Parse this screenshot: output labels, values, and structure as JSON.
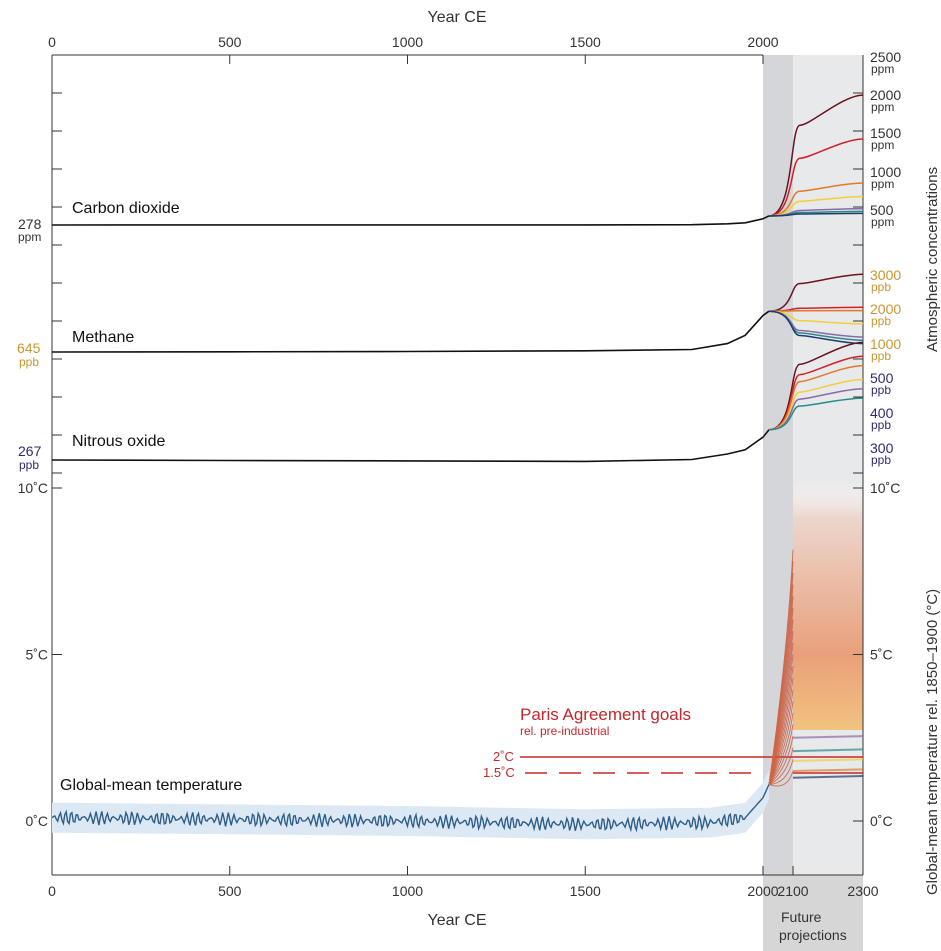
{
  "chart_data": {
    "type": "line",
    "x_axis": {
      "label_top": "Year CE",
      "label_bottom": "Year CE",
      "ticks_top": [
        "0",
        "500",
        "1000",
        "1500",
        "2000"
      ],
      "ticks_top_values": [
        0,
        500,
        1000,
        1500,
        2000
      ],
      "ticks_bottom": [
        "0",
        "500",
        "1000",
        "1500",
        "2000",
        "2100",
        "2300"
      ],
      "ticks_bottom_values": [
        0,
        500,
        1000,
        1500,
        2000,
        2100,
        2300
      ],
      "future_label_line1": "Future",
      "future_label_line2": "projections"
    },
    "right_axis_labels": {
      "concentrations": "Atmospheric concentrations",
      "temperature": "Global-mean temperature rel. 1850–1900 (°C)"
    },
    "temperature_ticks": [
      "10˚C",
      "5˚C",
      "0˚C"
    ],
    "temperature_tick_values": [
      10,
      5,
      0
    ],
    "concentration_ticks": {
      "co2": [
        {
          "value": "2500",
          "unit": "ppm"
        },
        {
          "value": "2000",
          "unit": "ppm"
        },
        {
          "value": "1500",
          "unit": "ppm"
        },
        {
          "value": "1000",
          "unit": "ppm"
        },
        {
          "value": "500",
          "unit": "ppm"
        }
      ],
      "ch4": [
        {
          "value": "3000",
          "unit": "ppb"
        },
        {
          "value": "2000",
          "unit": "ppb"
        },
        {
          "value": "1000",
          "unit": "ppb"
        }
      ],
      "n2o": [
        {
          "value": "500",
          "unit": "ppb"
        },
        {
          "value": "400",
          "unit": "ppb"
        },
        {
          "value": "300",
          "unit": "ppb"
        }
      ]
    },
    "baselines": {
      "co2": {
        "value": "278",
        "unit": "ppm"
      },
      "ch4": {
        "value": "645",
        "unit": "ppb"
      },
      "n2o": {
        "value": "267",
        "unit": "ppb"
      }
    },
    "series_labels": {
      "co2": "Carbon dioxide",
      "ch4": "Methane",
      "n2o": "Nitrous oxide",
      "temp": "Global-mean temperature"
    },
    "paris": {
      "title": "Paris Agreement goals",
      "subtitle": "rel. pre-industrial",
      "goal_2": "2˚C",
      "goal_15": "1.5˚C",
      "goal_2_value": 2.0,
      "goal_15_value": 1.5
    },
    "series": [
      {
        "name": "Carbon dioxide",
        "unit": "ppm",
        "x": [
          0,
          500,
          1000,
          1500,
          1800,
          1900,
          1950,
          2000,
          2020
        ],
        "y": [
          278,
          279,
          280,
          279,
          283,
          296,
          311,
          369,
          412
        ]
      },
      {
        "name": "Methane",
        "unit": "ppb",
        "x": [
          0,
          500,
          1000,
          1500,
          1800,
          1900,
          1950,
          2000,
          2020
        ],
        "y": [
          645,
          650,
          660,
          680,
          720,
          900,
          1150,
          1750,
          1880
        ]
      },
      {
        "name": "Nitrous oxide",
        "unit": "ppb",
        "x": [
          0,
          500,
          1000,
          1500,
          1800,
          1900,
          1950,
          2000,
          2020
        ],
        "y": [
          267,
          266,
          265,
          264,
          268,
          280,
          289,
          316,
          332
        ]
      },
      {
        "name": "Global-mean temperature",
        "unit": "°C",
        "x": [
          0,
          500,
          1000,
          1500,
          1850,
          1950,
          2000,
          2020
        ],
        "y": [
          0.1,
          0.05,
          0.0,
          -0.1,
          -0.05,
          0.1,
          0.7,
          1.1
        ]
      }
    ],
    "projections_2300": {
      "co2": [
        2200,
        1550,
        900,
        700,
        520,
        480,
        450
      ],
      "ch4": [
        3000,
        2000,
        1900,
        1500,
        1100,
        1000,
        900
      ],
      "n2o": [
        520,
        490,
        470,
        440,
        420,
        400
      ]
    }
  }
}
